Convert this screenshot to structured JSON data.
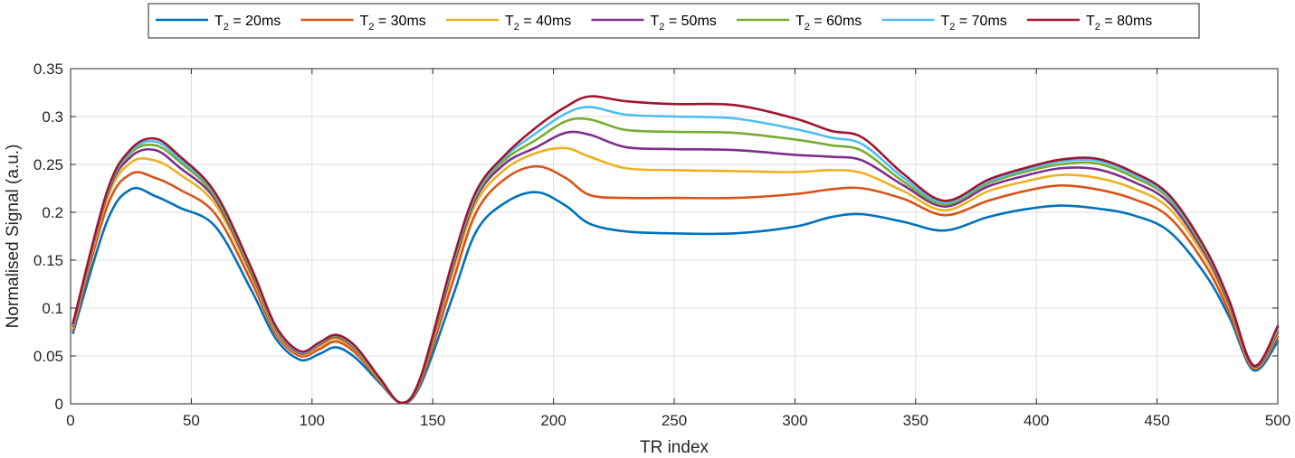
{
  "chart_data": {
    "type": "line",
    "title": "",
    "xlabel": "TR index",
    "ylabel": "Normalised Signal (a.u.)",
    "xlim": [
      0,
      500
    ],
    "ylim": [
      0,
      0.35
    ],
    "xticks": [
      0,
      50,
      100,
      150,
      200,
      250,
      300,
      350,
      400,
      450,
      500
    ],
    "yticks": [
      0,
      0.05,
      0.1,
      0.15,
      0.2,
      0.25,
      0.3,
      0.35
    ],
    "grid": true,
    "legend_position": "top-center, outside, horizontal",
    "x": [
      1,
      15,
      25,
      35,
      45,
      60,
      75,
      85,
      95,
      103,
      110,
      118,
      128,
      137,
      145,
      158,
      168,
      180,
      193,
      205,
      215,
      230,
      250,
      275,
      300,
      315,
      328,
      345,
      362,
      380,
      395,
      410,
      425,
      440,
      455,
      470,
      480,
      490,
      500
    ],
    "series": [
      {
        "name": "T2 = 20ms",
        "color": "#0072BD",
        "values": [
          0.074,
          0.19,
          0.224,
          0.217,
          0.205,
          0.185,
          0.118,
          0.068,
          0.046,
          0.052,
          0.059,
          0.048,
          0.022,
          0.001,
          0.02,
          0.11,
          0.18,
          0.21,
          0.221,
          0.207,
          0.188,
          0.18,
          0.178,
          0.178,
          0.185,
          0.195,
          0.198,
          0.19,
          0.181,
          0.195,
          0.203,
          0.207,
          0.204,
          0.197,
          0.18,
          0.135,
          0.09,
          0.035,
          0.065
        ]
      },
      {
        "name": "T2 = 30ms",
        "color": "#D95319",
        "values": [
          0.077,
          0.205,
          0.24,
          0.236,
          0.224,
          0.198,
          0.127,
          0.073,
          0.05,
          0.057,
          0.065,
          0.053,
          0.024,
          0.001,
          0.023,
          0.125,
          0.2,
          0.235,
          0.248,
          0.236,
          0.218,
          0.215,
          0.215,
          0.215,
          0.219,
          0.224,
          0.225,
          0.214,
          0.197,
          0.212,
          0.222,
          0.228,
          0.224,
          0.214,
          0.195,
          0.145,
          0.095,
          0.037,
          0.07
        ]
      },
      {
        "name": "T2 = 40ms",
        "color": "#EDB120",
        "values": [
          0.079,
          0.213,
          0.252,
          0.254,
          0.24,
          0.208,
          0.133,
          0.076,
          0.052,
          0.06,
          0.068,
          0.056,
          0.025,
          0.001,
          0.025,
          0.135,
          0.21,
          0.245,
          0.262,
          0.267,
          0.258,
          0.246,
          0.244,
          0.243,
          0.242,
          0.244,
          0.241,
          0.222,
          0.202,
          0.222,
          0.232,
          0.239,
          0.236,
          0.225,
          0.204,
          0.152,
          0.1,
          0.038,
          0.073
        ]
      },
      {
        "name": "T2 = 50ms",
        "color": "#7E2F8E",
        "values": [
          0.081,
          0.217,
          0.258,
          0.265,
          0.247,
          0.213,
          0.136,
          0.078,
          0.053,
          0.062,
          0.07,
          0.057,
          0.026,
          0.001,
          0.026,
          0.14,
          0.215,
          0.251,
          0.268,
          0.283,
          0.281,
          0.268,
          0.266,
          0.265,
          0.26,
          0.258,
          0.254,
          0.228,
          0.206,
          0.227,
          0.238,
          0.246,
          0.245,
          0.232,
          0.21,
          0.156,
          0.103,
          0.039,
          0.075
        ]
      },
      {
        "name": "T2 = 60ms",
        "color": "#77AC30",
        "values": [
          0.082,
          0.219,
          0.262,
          0.27,
          0.253,
          0.216,
          0.138,
          0.079,
          0.054,
          0.063,
          0.071,
          0.058,
          0.026,
          0.001,
          0.027,
          0.143,
          0.218,
          0.255,
          0.276,
          0.295,
          0.297,
          0.286,
          0.284,
          0.283,
          0.276,
          0.27,
          0.264,
          0.232,
          0.208,
          0.23,
          0.242,
          0.25,
          0.251,
          0.237,
          0.214,
          0.159,
          0.105,
          0.04,
          0.077
        ]
      },
      {
        "name": "T2 = 70ms",
        "color": "#4DBEEE",
        "values": [
          0.083,
          0.22,
          0.264,
          0.274,
          0.256,
          0.219,
          0.14,
          0.08,
          0.054,
          0.063,
          0.072,
          0.059,
          0.027,
          0.001,
          0.028,
          0.145,
          0.22,
          0.258,
          0.283,
          0.303,
          0.31,
          0.302,
          0.3,
          0.298,
          0.287,
          0.278,
          0.271,
          0.236,
          0.21,
          0.232,
          0.244,
          0.253,
          0.254,
          0.24,
          0.216,
          0.161,
          0.106,
          0.04,
          0.079
        ]
      },
      {
        "name": "T2 = 80ms",
        "color": "#A2142F",
        "values": [
          0.084,
          0.221,
          0.266,
          0.277,
          0.259,
          0.22,
          0.141,
          0.081,
          0.055,
          0.064,
          0.072,
          0.06,
          0.027,
          0.001,
          0.028,
          0.147,
          0.222,
          0.26,
          0.289,
          0.31,
          0.321,
          0.316,
          0.313,
          0.312,
          0.298,
          0.285,
          0.278,
          0.24,
          0.212,
          0.234,
          0.246,
          0.255,
          0.256,
          0.242,
          0.218,
          0.162,
          0.107,
          0.04,
          0.081
        ]
      }
    ],
    "legend_labels": [
      {
        "main": "T",
        "sub": "2",
        "rest": " = 20ms"
      },
      {
        "main": "T",
        "sub": "2",
        "rest": " = 30ms"
      },
      {
        "main": "T",
        "sub": "2",
        "rest": " = 40ms"
      },
      {
        "main": "T",
        "sub": "2",
        "rest": " = 50ms"
      },
      {
        "main": "T",
        "sub": "2",
        "rest": " = 60ms"
      },
      {
        "main": "T",
        "sub": "2",
        "rest": " = 70ms"
      },
      {
        "main": "T",
        "sub": "2",
        "rest": " = 80ms"
      }
    ]
  }
}
